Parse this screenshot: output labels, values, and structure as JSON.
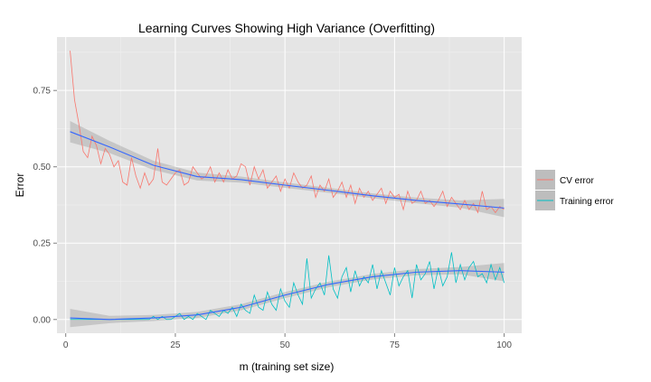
{
  "chart_data": {
    "type": "line",
    "title": "Learning Curves Showing High Variance (Overfitting)",
    "xlabel": "m (training set size)",
    "ylabel": "Error",
    "xlim": [
      -2,
      104
    ],
    "ylim": [
      -0.045,
      0.925
    ],
    "x_ticks": [
      0,
      25,
      50,
      75,
      100
    ],
    "x_tick_labels": [
      "0",
      "25",
      "50",
      "75",
      "100"
    ],
    "y_ticks": [
      0,
      0.25,
      0.5,
      0.75
    ],
    "y_tick_labels": [
      "0.00",
      "0.25",
      "0.50",
      "0.75"
    ],
    "grid": true,
    "legend_position": "right",
    "series": [
      {
        "name": "CV error",
        "color": "#f8766d",
        "x": [
          1,
          2,
          3,
          4,
          5,
          6,
          7,
          8,
          9,
          10,
          11,
          12,
          13,
          14,
          15,
          16,
          17,
          18,
          19,
          20,
          21,
          22,
          23,
          24,
          25,
          26,
          27,
          28,
          29,
          30,
          31,
          32,
          33,
          34,
          35,
          36,
          37,
          38,
          39,
          40,
          41,
          42,
          43,
          44,
          45,
          46,
          47,
          48,
          49,
          50,
          51,
          52,
          53,
          54,
          55,
          56,
          57,
          58,
          59,
          60,
          61,
          62,
          63,
          64,
          65,
          66,
          67,
          68,
          69,
          70,
          71,
          72,
          73,
          74,
          75,
          76,
          77,
          78,
          79,
          80,
          81,
          82,
          83,
          84,
          85,
          86,
          87,
          88,
          89,
          90,
          91,
          92,
          93,
          94,
          95,
          96,
          97,
          98,
          99,
          100
        ],
        "y": [
          0.88,
          0.72,
          0.64,
          0.55,
          0.53,
          0.6,
          0.57,
          0.51,
          0.56,
          0.54,
          0.5,
          0.52,
          0.45,
          0.44,
          0.53,
          0.47,
          0.43,
          0.48,
          0.44,
          0.46,
          0.56,
          0.45,
          0.44,
          0.46,
          0.48,
          0.49,
          0.44,
          0.45,
          0.5,
          0.48,
          0.46,
          0.47,
          0.5,
          0.45,
          0.48,
          0.45,
          0.49,
          0.46,
          0.47,
          0.51,
          0.5,
          0.44,
          0.5,
          0.46,
          0.49,
          0.43,
          0.45,
          0.47,
          0.42,
          0.46,
          0.43,
          0.48,
          0.45,
          0.43,
          0.44,
          0.47,
          0.4,
          0.44,
          0.42,
          0.46,
          0.4,
          0.42,
          0.45,
          0.4,
          0.44,
          0.38,
          0.43,
          0.4,
          0.42,
          0.39,
          0.41,
          0.43,
          0.38,
          0.42,
          0.4,
          0.41,
          0.36,
          0.42,
          0.38,
          0.39,
          0.42,
          0.38,
          0.39,
          0.37,
          0.39,
          0.42,
          0.37,
          0.4,
          0.38,
          0.36,
          0.39,
          0.36,
          0.38,
          0.35,
          0.42,
          0.36,
          0.37,
          0.35,
          0.37,
          0.36
        ]
      },
      {
        "name": "Training error",
        "color": "#00bfc4",
        "x": [
          1,
          2,
          3,
          4,
          5,
          6,
          7,
          8,
          9,
          10,
          11,
          12,
          13,
          14,
          15,
          16,
          17,
          18,
          19,
          20,
          21,
          22,
          23,
          24,
          25,
          26,
          27,
          28,
          29,
          30,
          31,
          32,
          33,
          34,
          35,
          36,
          37,
          38,
          39,
          40,
          41,
          42,
          43,
          44,
          45,
          46,
          47,
          48,
          49,
          50,
          51,
          52,
          53,
          54,
          55,
          56,
          57,
          58,
          59,
          60,
          61,
          62,
          63,
          64,
          65,
          66,
          67,
          68,
          69,
          70,
          71,
          72,
          73,
          74,
          75,
          76,
          77,
          78,
          79,
          80,
          81,
          82,
          83,
          84,
          85,
          86,
          87,
          88,
          89,
          90,
          91,
          92,
          93,
          94,
          95,
          96,
          97,
          98,
          99,
          100
        ],
        "y": [
          0,
          0,
          0,
          0,
          0,
          0,
          0,
          0,
          0,
          0,
          0,
          0,
          0,
          0,
          0,
          0,
          0,
          0,
          0,
          0.01,
          0,
          0.01,
          0,
          0,
          0.01,
          0.02,
          0,
          0.01,
          0,
          0.02,
          0.01,
          0,
          0.03,
          0.02,
          0.01,
          0.03,
          0.02,
          0.04,
          0.01,
          0.05,
          0.03,
          0.02,
          0.08,
          0.04,
          0.03,
          0.09,
          0.05,
          0.03,
          0.1,
          0.06,
          0.04,
          0.12,
          0.08,
          0.05,
          0.2,
          0.07,
          0.1,
          0.12,
          0.08,
          0.21,
          0.1,
          0.07,
          0.14,
          0.17,
          0.09,
          0.16,
          0.11,
          0.14,
          0.12,
          0.18,
          0.1,
          0.16,
          0.12,
          0.08,
          0.17,
          0.11,
          0.14,
          0.16,
          0.07,
          0.18,
          0.13,
          0.15,
          0.19,
          0.1,
          0.17,
          0.11,
          0.14,
          0.22,
          0.12,
          0.18,
          0.13,
          0.17,
          0.19,
          0.14,
          0.15,
          0.12,
          0.18,
          0.13,
          0.17,
          0.12
        ]
      },
      {
        "name": "CV error fit",
        "color": "#3366ff",
        "x": [
          1,
          10,
          20,
          30,
          40,
          50,
          60,
          70,
          80,
          90,
          100
        ],
        "y": [
          0.615,
          0.565,
          0.505,
          0.468,
          0.458,
          0.44,
          0.423,
          0.405,
          0.39,
          0.378,
          0.365
        ],
        "band_lower": [
          0.58,
          0.545,
          0.49,
          0.455,
          0.448,
          0.431,
          0.415,
          0.397,
          0.381,
          0.366,
          0.335
        ],
        "band_upper": [
          0.65,
          0.585,
          0.52,
          0.481,
          0.468,
          0.449,
          0.431,
          0.413,
          0.399,
          0.39,
          0.395
        ]
      },
      {
        "name": "Training error fit",
        "color": "#3366ff",
        "x": [
          1,
          10,
          20,
          30,
          40,
          50,
          60,
          70,
          80,
          90,
          100
        ],
        "y": [
          0.005,
          0.0,
          0.005,
          0.015,
          0.04,
          0.08,
          0.115,
          0.14,
          0.155,
          0.16,
          0.155
        ],
        "band_lower": [
          -0.025,
          -0.012,
          -0.005,
          0.005,
          0.03,
          0.07,
          0.106,
          0.131,
          0.145,
          0.148,
          0.125
        ],
        "band_upper": [
          0.035,
          0.012,
          0.015,
          0.025,
          0.05,
          0.09,
          0.124,
          0.149,
          0.165,
          0.172,
          0.185
        ]
      }
    ]
  }
}
